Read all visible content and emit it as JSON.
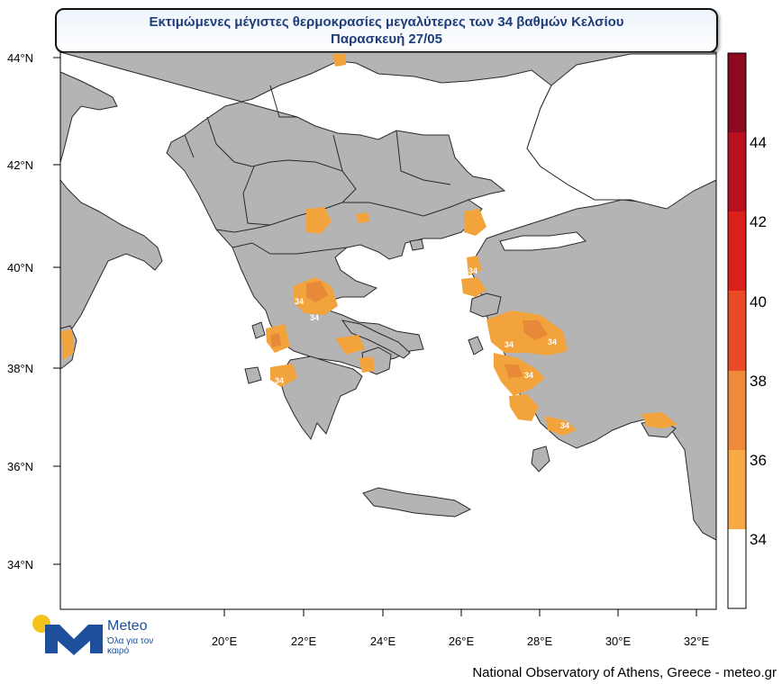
{
  "title": {
    "line1": "Εκτιμώμενες μέγιστες θερμοκρασίες μεγαλύτερες των 34 βαθμών Κελσίου",
    "line2": "Παρασκευή 27/05"
  },
  "map": {
    "lat_labels": [
      "44°N",
      "42°N",
      "40°N",
      "38°N",
      "36°N",
      "34°N"
    ],
    "lon_labels": [
      "20°E",
      "22°E",
      "24°E",
      "26°E",
      "28°E",
      "30°E",
      "32°E"
    ],
    "contour_labels": [
      "34",
      "34",
      "34",
      "34",
      "34",
      "34",
      "34",
      "34"
    ],
    "colors": {
      "land": "#b4b4b4",
      "sea": "#ffffff",
      "border": "#2a2a2a",
      "hot_34_36": "#f2a33c",
      "hot_36_38": "#e8893a"
    }
  },
  "colorbar": {
    "tick_labels": [
      "44",
      "42",
      "40",
      "38",
      "36",
      "34"
    ],
    "bins": [
      {
        "range": "<34",
        "color": "#ffffff"
      },
      {
        "range": "34-36",
        "color": "#f6a944"
      },
      {
        "range": "36-38",
        "color": "#ef8a3a"
      },
      {
        "range": "38-40",
        "color": "#ea4a25"
      },
      {
        "range": "40-42",
        "color": "#db1f1a"
      },
      {
        "range": "42-44",
        "color": "#b8101d"
      },
      {
        "range": ">44",
        "color": "#8c0a20"
      }
    ]
  },
  "branding": {
    "name": "Meteo",
    "tagline": "Όλα για τον καιρό"
  },
  "footer": "National Observatory of Athens, Greece - meteo.gr"
}
